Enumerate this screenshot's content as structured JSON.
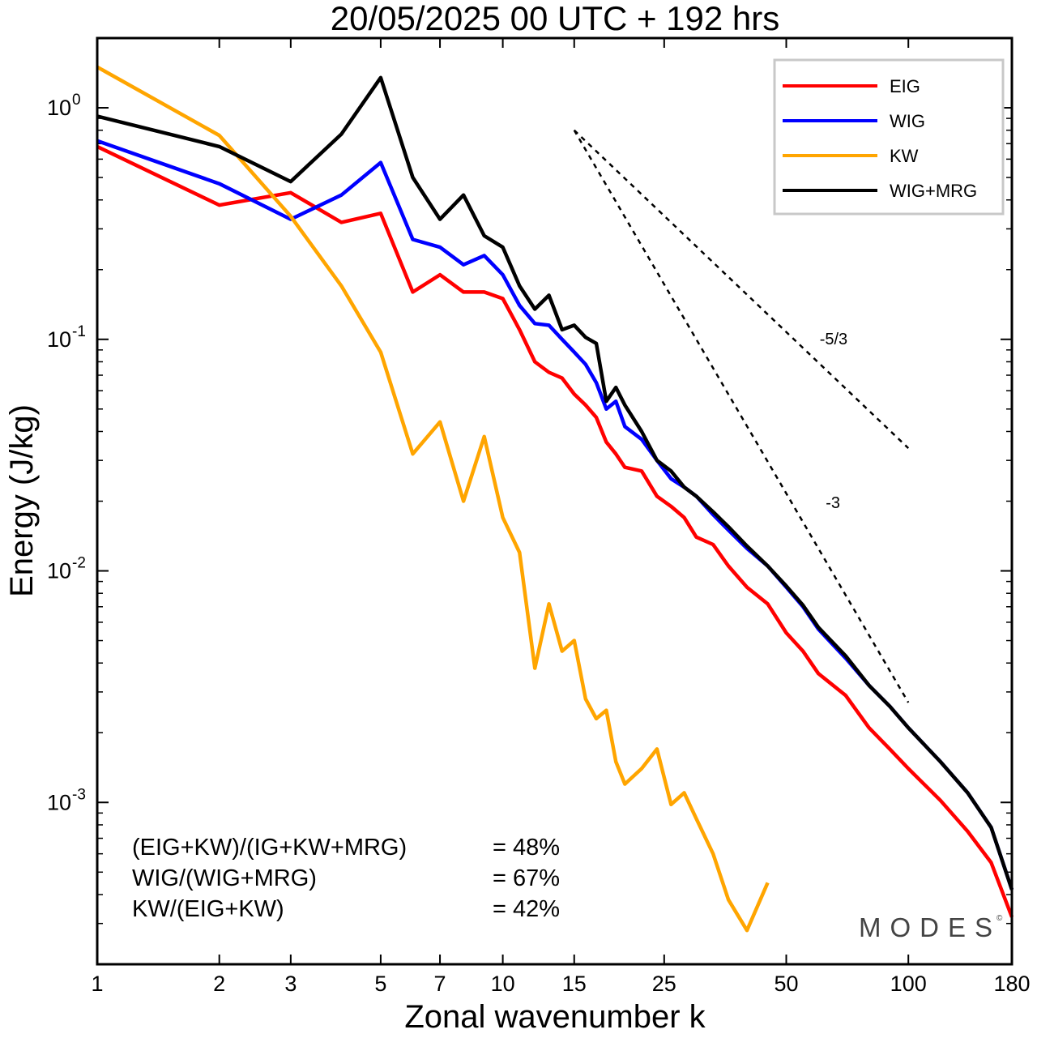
{
  "chart_data": {
    "type": "line",
    "title": "20/05/2025  00 UTC  + 192 hrs",
    "xlabel": "Zonal wavenumber k",
    "ylabel": "Energy (J/kg)",
    "x_scale": "log",
    "y_scale": "log",
    "xlim": [
      1,
      180
    ],
    "ylim": [
      0.0002,
      2.0
    ],
    "x_ticks": [
      {
        "value": 1,
        "label": "1"
      },
      {
        "value": 2,
        "label": "2"
      },
      {
        "value": 3,
        "label": "3"
      },
      {
        "value": 5,
        "label": "5"
      },
      {
        "value": 7,
        "label": "7"
      },
      {
        "value": 10,
        "label": "10"
      },
      {
        "value": 15,
        "label": "15"
      },
      {
        "value": 25,
        "label": "25"
      },
      {
        "value": 50,
        "label": "50"
      },
      {
        "value": 100,
        "label": "100"
      },
      {
        "value": 180,
        "label": "180"
      }
    ],
    "y_ticks": [
      {
        "value": 1.0,
        "base": "10",
        "exp": "0"
      },
      {
        "value": 0.1,
        "base": "10",
        "exp": "-1"
      },
      {
        "value": 0.01,
        "base": "10",
        "exp": "-2"
      },
      {
        "value": 0.001,
        "base": "10",
        "exp": "-3"
      }
    ],
    "legend_position": "top-right",
    "series": [
      {
        "name": "EIG",
        "color": "#ff0000",
        "x": [
          1,
          2,
          3,
          4,
          5,
          6,
          7,
          8,
          9,
          10,
          11,
          12,
          13,
          14,
          15,
          16,
          17,
          18,
          19,
          20,
          22,
          24,
          26,
          28,
          30,
          33,
          36,
          40,
          45,
          50,
          55,
          60,
          70,
          80,
          90,
          100,
          120,
          140,
          160,
          180
        ],
        "y": [
          0.68,
          0.38,
          0.43,
          0.32,
          0.35,
          0.16,
          0.19,
          0.16,
          0.16,
          0.15,
          0.11,
          0.08,
          0.072,
          0.068,
          0.058,
          0.052,
          0.046,
          0.036,
          0.032,
          0.028,
          0.027,
          0.021,
          0.019,
          0.017,
          0.014,
          0.013,
          0.0105,
          0.0085,
          0.0072,
          0.0054,
          0.0045,
          0.0036,
          0.0029,
          0.0021,
          0.0017,
          0.0014,
          0.00102,
          0.00075,
          0.00055,
          0.00032
        ]
      },
      {
        "name": "WIG",
        "color": "#0000ff",
        "x": [
          1,
          2,
          3,
          4,
          5,
          6,
          7,
          8,
          9,
          10,
          11,
          12,
          13,
          14,
          15,
          16,
          17,
          18,
          19,
          20,
          22,
          24,
          26,
          28,
          30,
          33,
          36,
          40,
          45,
          50,
          55,
          60,
          70,
          80,
          90,
          100,
          120,
          140,
          160,
          180
        ],
        "y": [
          0.72,
          0.47,
          0.33,
          0.42,
          0.58,
          0.27,
          0.25,
          0.21,
          0.23,
          0.19,
          0.14,
          0.117,
          0.115,
          0.1,
          0.088,
          0.078,
          0.065,
          0.05,
          0.054,
          0.042,
          0.037,
          0.03,
          0.025,
          0.023,
          0.021,
          0.0175,
          0.015,
          0.0125,
          0.0105,
          0.0085,
          0.007,
          0.0056,
          0.0042,
          0.0032,
          0.0026,
          0.0021,
          0.0015,
          0.0011,
          0.00078,
          0.00042
        ]
      },
      {
        "name": "KW",
        "color": "#ffa500",
        "x": [
          1,
          2,
          3,
          4,
          5,
          6,
          7,
          8,
          9,
          10,
          11,
          12,
          13,
          14,
          15,
          16,
          17,
          18,
          19,
          20,
          22,
          24,
          26,
          28,
          30,
          33,
          36,
          40,
          45
        ],
        "y": [
          1.5,
          0.76,
          0.34,
          0.17,
          0.088,
          0.032,
          0.044,
          0.02,
          0.038,
          0.017,
          0.012,
          0.0038,
          0.0072,
          0.0045,
          0.005,
          0.0028,
          0.0023,
          0.0025,
          0.0015,
          0.0012,
          0.0014,
          0.0017,
          0.00098,
          0.0011,
          0.00085,
          0.0006,
          0.00038,
          0.00028,
          0.00045
        ]
      },
      {
        "name": "WIG+MRG",
        "color": "#000000",
        "x": [
          1,
          2,
          3,
          4,
          5,
          6,
          7,
          8,
          9,
          10,
          11,
          12,
          13,
          14,
          15,
          16,
          17,
          18,
          19,
          20,
          22,
          24,
          26,
          28,
          30,
          33,
          36,
          40,
          45,
          50,
          55,
          60,
          70,
          80,
          90,
          100,
          120,
          140,
          160,
          180
        ],
        "y": [
          0.92,
          0.68,
          0.48,
          0.77,
          1.35,
          0.5,
          0.33,
          0.42,
          0.28,
          0.25,
          0.17,
          0.135,
          0.155,
          0.11,
          0.115,
          0.102,
          0.096,
          0.054,
          0.062,
          0.052,
          0.04,
          0.03,
          0.027,
          0.023,
          0.021,
          0.018,
          0.0155,
          0.0128,
          0.0105,
          0.0086,
          0.0071,
          0.0057,
          0.0043,
          0.0032,
          0.0026,
          0.0021,
          0.0015,
          0.0011,
          0.00078,
          0.00042
        ]
      }
    ],
    "reference_lines": [
      {
        "label": "-5/3",
        "slope": -1.6667,
        "x_start": 15,
        "y_start": 0.8,
        "x_end": 100
      },
      {
        "label": "-3",
        "slope": -3,
        "x_start": 15,
        "y_start": 0.8,
        "x_end": 100
      }
    ],
    "annotations": [
      {
        "label": "(EIG+KW)/(IG+KW+MRG)",
        "value": "= 48%"
      },
      {
        "label": "WIG/(WIG+MRG)",
        "value": "= 67%"
      },
      {
        "label": "KW/(EIG+KW)",
        "value": "= 42%"
      }
    ],
    "watermark": "MODES",
    "watermark_mark": "©"
  }
}
